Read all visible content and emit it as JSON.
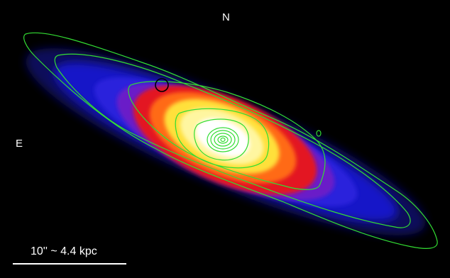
{
  "image": {
    "orientation": {
      "north_label": "N",
      "east_label": "E"
    },
    "scale_bar": {
      "label": "10'' ~ 4.4 kpc"
    },
    "colors": {
      "background": "#000000",
      "contour": "#33dd33",
      "marker_circle": "#000000",
      "text": "#ffffff"
    },
    "colormap": [
      "#00006a",
      "#1a1ad6",
      "#5a1fd0",
      "#e01020",
      "#ff6a10",
      "#ffe23a",
      "#ffffff"
    ]
  }
}
